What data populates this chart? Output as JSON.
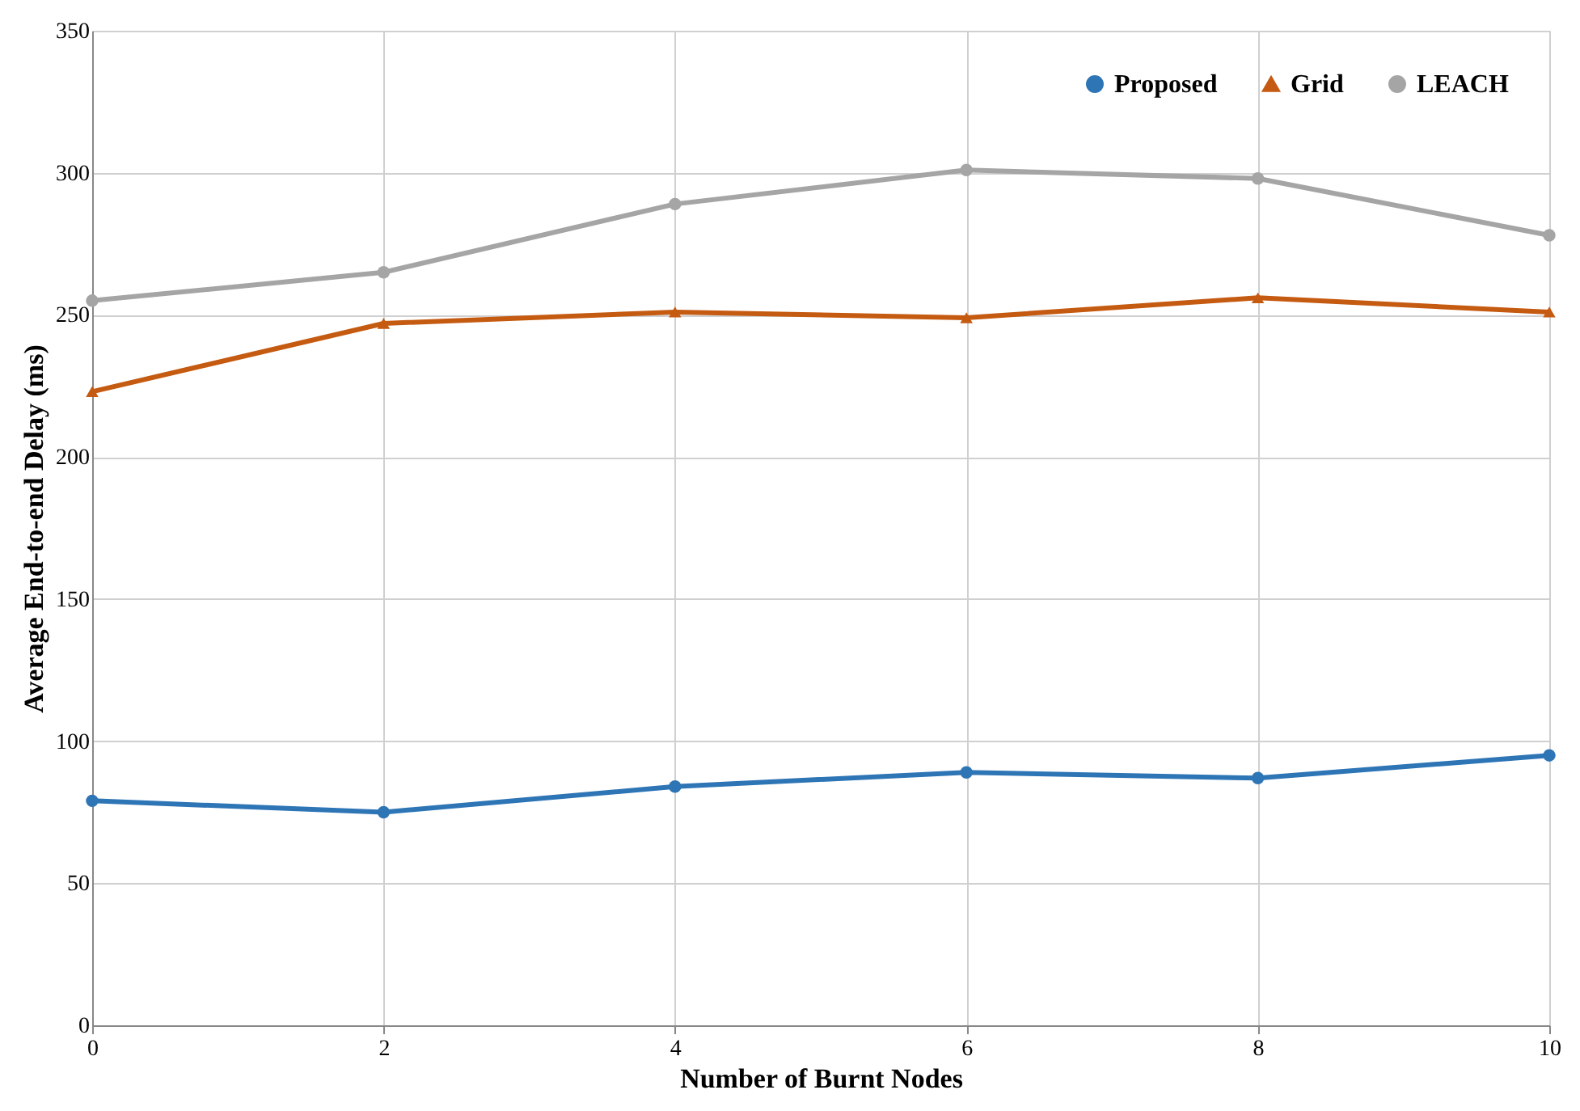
{
  "chart_data": {
    "type": "line",
    "xlabel": "Number of Burnt Nodes",
    "ylabel": "Average End-to-end Delay (ms)",
    "x": [
      0,
      2,
      4,
      6,
      8,
      10
    ],
    "series": [
      {
        "name": "Proposed",
        "color": "#2e75b6",
        "marker": "circle",
        "values": [
          79,
          75,
          84,
          89,
          87,
          95
        ]
      },
      {
        "name": "Grid",
        "color": "#c55a11",
        "marker": "triangle",
        "values": [
          223,
          247,
          251,
          249,
          256,
          251
        ]
      },
      {
        "name": "LEACH",
        "color": "#a5a5a5",
        "marker": "circle",
        "values": [
          255,
          265,
          289,
          301,
          298,
          278
        ]
      }
    ],
    "xlim": [
      0,
      10
    ],
    "xticks": [
      0,
      2,
      4,
      6,
      8,
      10
    ],
    "ylim": [
      0,
      350
    ],
    "yticks": [
      0,
      50,
      100,
      150,
      200,
      250,
      300,
      350
    ],
    "grid": true,
    "legend": "top right",
    "line_style": "solid"
  }
}
